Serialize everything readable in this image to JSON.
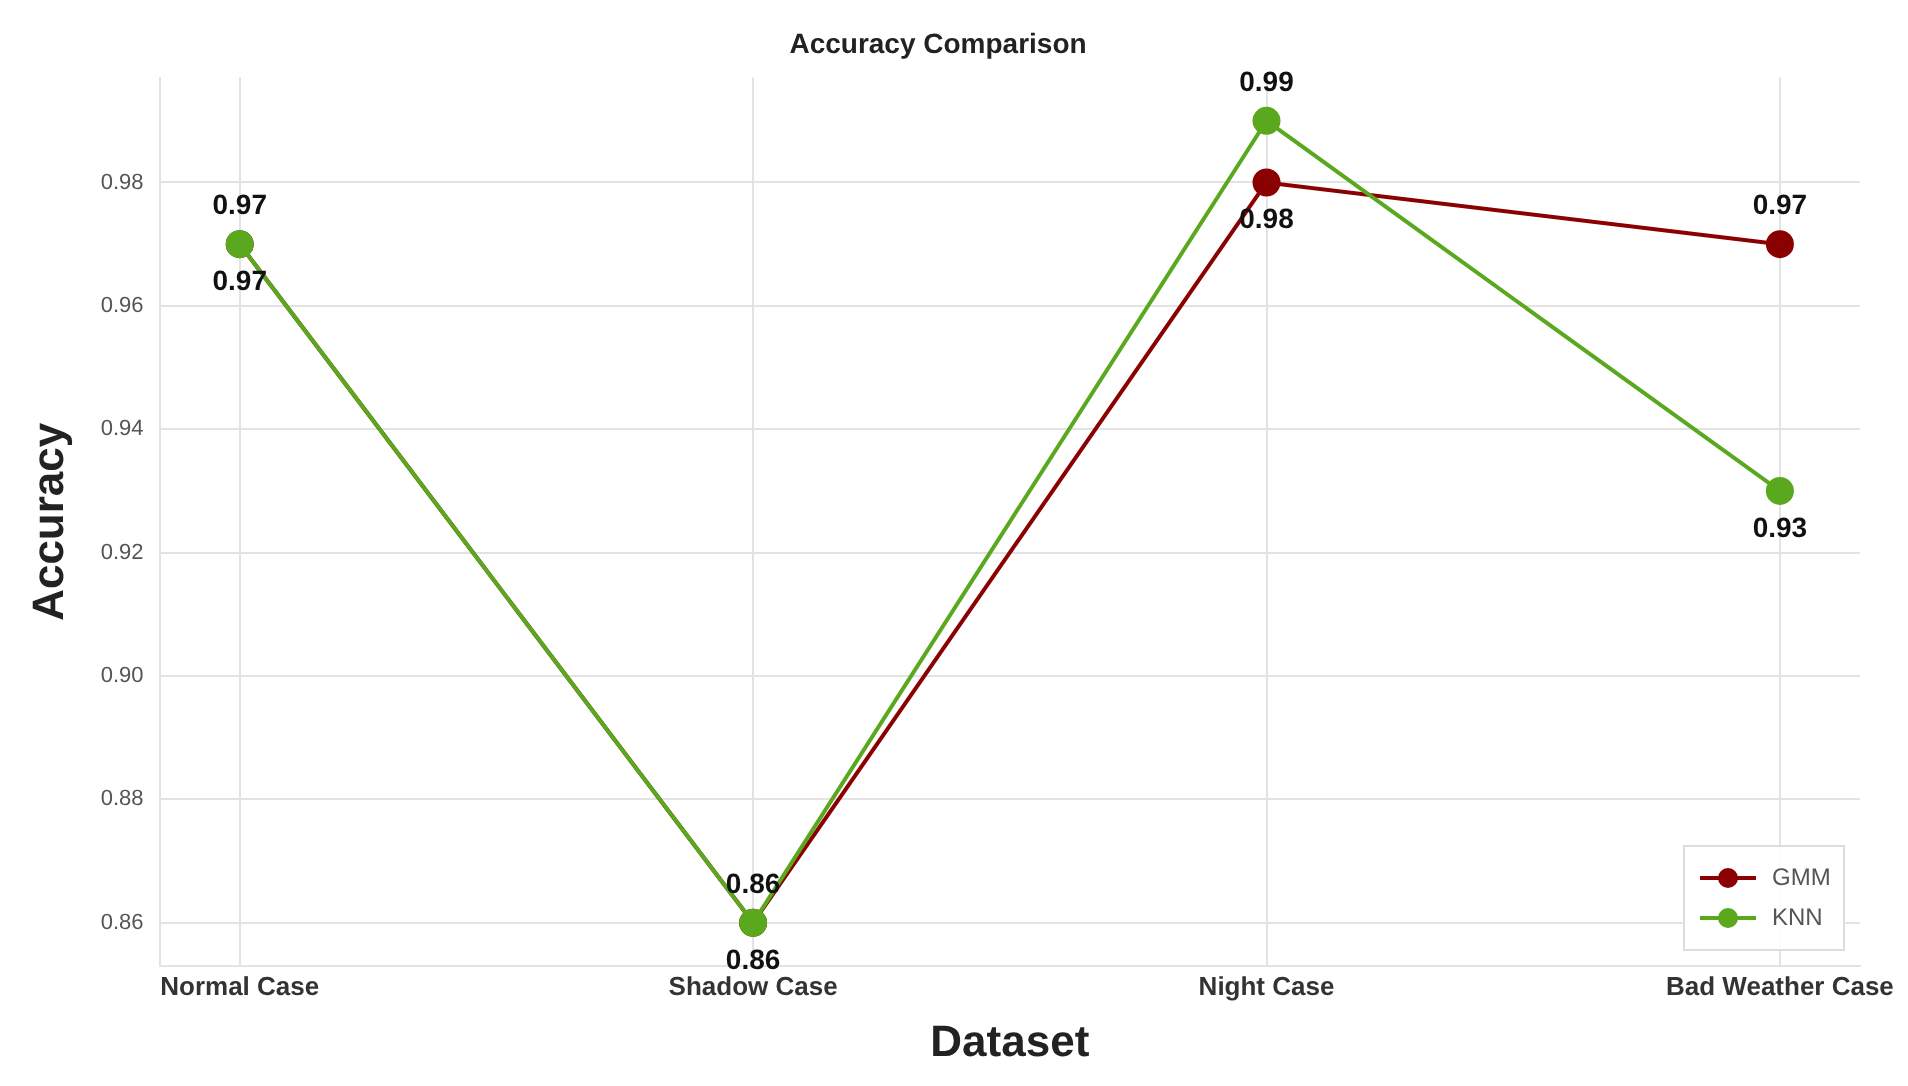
{
  "chart_data": {
    "type": "line",
    "title": "Accuracy Comparison",
    "xlabel": "Dataset",
    "ylabel": "Accuracy",
    "categories": [
      "Normal Case",
      "Shadow Case",
      "Night Case",
      "Bad Weather Case"
    ],
    "series": [
      {
        "name": "GMM",
        "color": "#8b0000",
        "values": [
          0.97,
          0.86,
          0.98,
          0.97
        ]
      },
      {
        "name": "KNN",
        "color": "#5aa81e",
        "values": [
          0.97,
          0.86,
          0.99,
          0.93
        ]
      }
    ],
    "ylim": [
      0.853,
      0.997
    ],
    "yticks": [
      {
        "value": 0.86,
        "label": "0.86"
      },
      {
        "value": 0.88,
        "label": "0.88"
      },
      {
        "value": 0.9,
        "label": "0.90"
      },
      {
        "value": 0.92,
        "label": "0.92"
      },
      {
        "value": 0.94,
        "label": "0.94"
      },
      {
        "value": 0.96,
        "label": "0.96"
      },
      {
        "value": 0.98,
        "label": "0.98"
      }
    ],
    "grid": true,
    "legend": "bottom right",
    "marker": "circle",
    "line_style": "solid",
    "data_labels": true
  }
}
